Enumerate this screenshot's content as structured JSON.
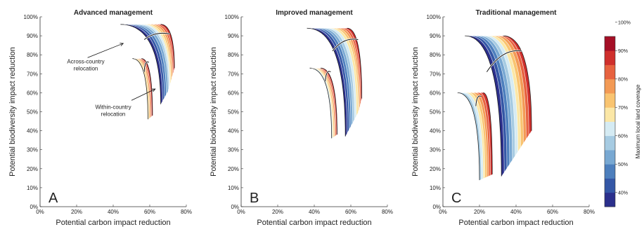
{
  "chart_data": [
    {
      "type": "area",
      "panel_label": "A",
      "title": "Advanced management",
      "xlabel": "Potential carbon impact reduction",
      "ylabel": "Potential biodiversity impact reduction",
      "xlim": [
        0,
        80
      ],
      "ylim": [
        0,
        100
      ],
      "x_ticks": [
        "0%",
        "20%",
        "40%",
        "60%",
        "80%"
      ],
      "y_ticks": [
        "0%",
        "10%",
        "20%",
        "30%",
        "40%",
        "50%",
        "60%",
        "70%",
        "80%",
        "90%",
        "100%"
      ],
      "annotations": [
        {
          "text": [
            "Across-country",
            "relocation"
          ]
        },
        {
          "text": [
            "Within-country",
            "relocation"
          ]
        }
      ],
      "fans": [
        {
          "relocation": "across-country",
          "series_x_at_top": [
            44,
            46,
            48,
            50,
            52,
            54,
            56,
            58,
            60,
            62,
            64,
            66
          ],
          "series_x_at_bottom": [
            66,
            67,
            68,
            69,
            70,
            70.5,
            71,
            71.5,
            72,
            72.5,
            73,
            73.5
          ],
          "top_y": 96,
          "inner_bottom_y": 54,
          "outer_bottom_y": 73,
          "marker_line": [
            [
              57,
              88
            ],
            [
              71,
              91
            ]
          ]
        },
        {
          "relocation": "within-country",
          "series_x_at_top": [
            50.5,
            51.5,
            52.5,
            53.5,
            54.5,
            55.5
          ],
          "series_x_at_bottom": [
            59,
            59.5,
            60,
            60.5,
            61,
            61.5
          ],
          "top_y": 78,
          "inner_bottom_y": 46,
          "outer_bottom_y": 48,
          "marker_line": [
            [
              57,
              71
            ],
            [
              59.5,
              76
            ]
          ]
        }
      ]
    },
    {
      "type": "area",
      "panel_label": "B",
      "title": "Improved management",
      "xlabel": "Potential carbon impact reduction",
      "ylabel": "Potential biodiversity impact reduction",
      "xlim": [
        0,
        80
      ],
      "ylim": [
        0,
        100
      ],
      "x_ticks": [
        "0%",
        "20%",
        "40%",
        "60%",
        "80%"
      ],
      "y_ticks": [
        "0%",
        "10%",
        "20%",
        "30%",
        "40%",
        "50%",
        "60%",
        "70%",
        "80%",
        "90%",
        "100%"
      ],
      "fans": [
        {
          "relocation": "across-country",
          "series_x_at_top": [
            36,
            38,
            40,
            42,
            44,
            46,
            48,
            50,
            52,
            54,
            56,
            58
          ],
          "series_x_at_bottom": [
            57,
            58,
            59,
            60,
            61,
            62,
            63,
            64,
            64.5,
            65,
            65.5,
            66
          ],
          "top_y": 94,
          "inner_bottom_y": 37,
          "outer_bottom_y": 57,
          "marker_line": [
            [
              50,
              82
            ],
            [
              64,
              88
            ]
          ]
        },
        {
          "relocation": "within-country",
          "series_x_at_top": [
            37.5,
            38.5,
            39.5,
            40.5,
            41.5,
            42.5,
            43.5
          ],
          "series_x_at_bottom": [
            49.5,
            50,
            50.5,
            51,
            51.5,
            52,
            52.5
          ],
          "top_y": 73,
          "inner_bottom_y": 36,
          "outer_bottom_y": 38,
          "marker_line": [
            [
              46,
              66
            ],
            [
              49,
              71
            ]
          ]
        }
      ]
    },
    {
      "type": "area",
      "panel_label": "C",
      "title": "Traditional management",
      "xlabel": "Potential carbon impact reduction",
      "ylabel": "Potential biodiversity impact reduction",
      "xlim": [
        0,
        80
      ],
      "ylim": [
        0,
        100
      ],
      "x_ticks": [
        "0%",
        "20%",
        "40%",
        "60%",
        "80%"
      ],
      "y_ticks": [
        "0%",
        "10%",
        "20%",
        "30%",
        "40%",
        "50%",
        "60%",
        "70%",
        "80%",
        "90%",
        "100%"
      ],
      "fans": [
        {
          "relocation": "across-country",
          "series_x_at_top": [
            12,
            14,
            16,
            18,
            20,
            22,
            24,
            26,
            28,
            30,
            31.5,
            33
          ],
          "series_x_at_bottom": [
            32,
            33.5,
            35,
            36.5,
            38,
            39.5,
            41,
            42.5,
            44,
            45.5,
            47,
            48.5
          ],
          "top_y": 90,
          "inner_bottom_y": 16,
          "outer_bottom_y": 40,
          "marker_line": [
            [
              24,
              71
            ],
            [
              43,
              82
            ]
          ]
        },
        {
          "relocation": "within-country",
          "series_x_at_top": [
            8,
            10,
            12,
            14,
            16,
            18,
            20,
            22
          ],
          "series_x_at_bottom": [
            20,
            21,
            22,
            23,
            24,
            25,
            26,
            27
          ],
          "top_y": 60,
          "inner_bottom_y": 14,
          "outer_bottom_y": 17,
          "marker_line": [
            [
              18,
              53
            ],
            [
              21,
              58
            ]
          ]
        }
      ]
    }
  ],
  "colorbar": {
    "label": "Maximum local land coverage",
    "tick_labels": [
      "40%",
      "50%",
      "60%",
      "70%",
      "80%",
      "90%",
      "100%"
    ],
    "colors": [
      "#2b2f8c",
      "#3457a6",
      "#4d7fbd",
      "#78a8d2",
      "#a6cbe2",
      "#d5ebf3",
      "#fbe7a6",
      "#f9c470",
      "#f39a55",
      "#e7623f",
      "#cf2f2c",
      "#a50f26"
    ]
  }
}
